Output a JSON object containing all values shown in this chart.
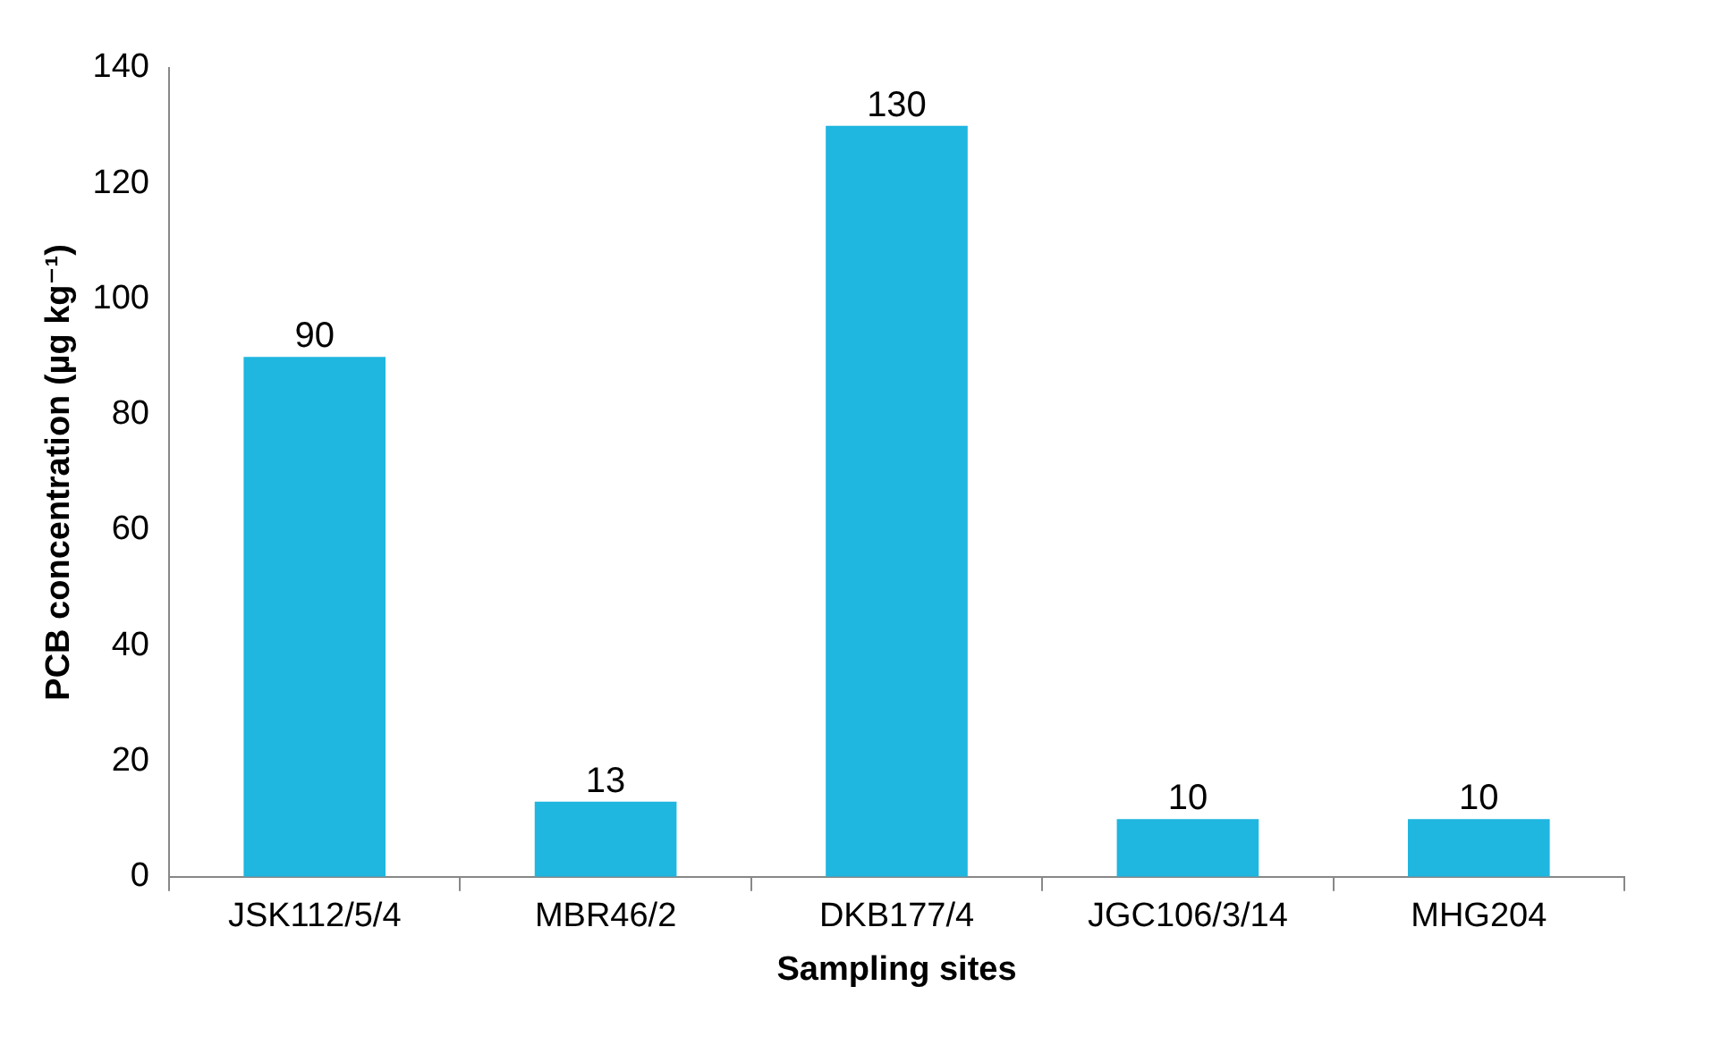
{
  "chart_data": {
    "type": "bar",
    "xlabel": "Sampling sites",
    "ylabel": "PCB concentration (µg kg⁻¹)",
    "categories": [
      "JSK112/5/4",
      "MBR46/2",
      "DKB177/4",
      "JGC106/3/14",
      "MHG204"
    ],
    "values": [
      90,
      13,
      130,
      10,
      10
    ],
    "color": "#1fb6e0",
    "ylim": [
      0,
      140
    ],
    "yticks": [
      0,
      20,
      40,
      60,
      80,
      100,
      120,
      140
    ],
    "grid": false,
    "data_labels": true,
    "legend": false
  }
}
